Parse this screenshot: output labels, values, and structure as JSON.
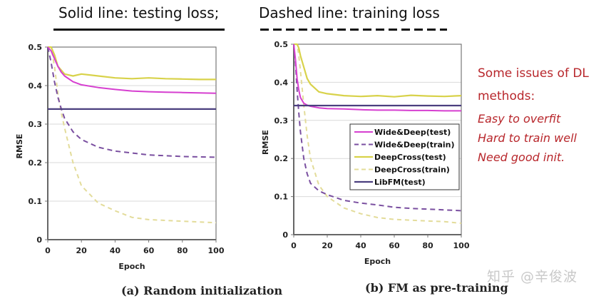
{
  "headings": {
    "solid": "Solid line: testing loss;",
    "dashed": "Dashed line: training loss"
  },
  "notes": {
    "title_line1": "Some issues of DL",
    "title_line2": "methods:",
    "items": [
      "Easy to overfit",
      "Hard to train well",
      "Need good init."
    ]
  },
  "watermark": "知乎 @辛俊波",
  "colors": {
    "wide_deep": "#d63fd0",
    "wide_deep_train": "#7a4fa0",
    "deepcross": "#d8d24a",
    "deepcross_train": "#e3dc9a",
    "libfm": "#4b3f7f",
    "note_text": "#b8272c"
  },
  "chart_data": [
    {
      "type": "line",
      "title": "(a) Random initialization",
      "xlabel": "Epoch",
      "ylabel": "RMSE",
      "xlim": [
        0,
        100
      ],
      "ylim": [
        0,
        0.5
      ],
      "xticks": [
        "0",
        "20",
        "40",
        "60",
        "80",
        "100"
      ],
      "yticks": [
        "0",
        "0.1",
        "0.2",
        "0.3",
        "0.4",
        "0.5"
      ],
      "grid": true,
      "legend": "none",
      "x": [
        0,
        2,
        4,
        6,
        8,
        10,
        15,
        20,
        30,
        40,
        50,
        60,
        70,
        80,
        90,
        100
      ],
      "series": [
        {
          "name": "Wide&Deep(test)",
          "style": "solid",
          "values": [
            0.5,
            0.49,
            0.47,
            0.45,
            0.435,
            0.425,
            0.41,
            0.402,
            0.395,
            0.39,
            0.386,
            0.384,
            0.383,
            0.382,
            0.381,
            0.38
          ]
        },
        {
          "name": "Wide&Deep(train)",
          "style": "dashed",
          "values": [
            0.5,
            0.46,
            0.41,
            0.37,
            0.34,
            0.315,
            0.28,
            0.26,
            0.24,
            0.23,
            0.225,
            0.22,
            0.218,
            0.216,
            0.215,
            0.214
          ]
        },
        {
          "name": "DeepCross(test)",
          "style": "solid",
          "values": [
            0.5,
            0.5,
            0.48,
            0.45,
            0.44,
            0.43,
            0.425,
            0.43,
            0.425,
            0.42,
            0.418,
            0.42,
            0.418,
            0.417,
            0.416,
            0.416
          ]
        },
        {
          "name": "DeepCross(train)",
          "style": "dashed",
          "values": [
            0.5,
            0.5,
            0.45,
            0.38,
            0.33,
            0.29,
            0.2,
            0.14,
            0.095,
            0.075,
            0.058,
            0.052,
            0.05,
            0.048,
            0.046,
            0.044
          ]
        },
        {
          "name": "LibFM(test)",
          "style": "solid",
          "values": [
            0.339,
            0.339,
            0.339,
            0.339,
            0.339,
            0.339,
            0.339,
            0.339,
            0.339,
            0.339,
            0.339,
            0.339,
            0.339,
            0.339,
            0.339,
            0.339
          ]
        }
      ]
    },
    {
      "type": "line",
      "title": "(b) FM as pre-training",
      "xlabel": "Epoch",
      "ylabel": "RMSE",
      "xlim": [
        0,
        100
      ],
      "ylim": [
        0,
        0.5
      ],
      "xticks": [
        "0",
        "20",
        "40",
        "60",
        "80",
        "100"
      ],
      "yticks": [
        "0",
        "0.1",
        "0.2",
        "0.3",
        "0.4",
        "0.5"
      ],
      "grid": true,
      "legend": "center-right",
      "x": [
        0,
        1,
        2,
        3,
        4,
        6,
        8,
        10,
        15,
        20,
        30,
        40,
        50,
        60,
        70,
        80,
        90,
        100
      ],
      "series": [
        {
          "name": "Wide&Deep(test)",
          "style": "solid",
          "values": [
            0.5,
            0.46,
            0.41,
            0.38,
            0.36,
            0.345,
            0.34,
            0.337,
            0.333,
            0.331,
            0.33,
            0.328,
            0.327,
            0.327,
            0.326,
            0.326,
            0.325,
            0.325
          ]
        },
        {
          "name": "Wide&Deep(train)",
          "style": "dashed",
          "values": [
            0.5,
            0.45,
            0.38,
            0.32,
            0.27,
            0.2,
            0.16,
            0.135,
            0.115,
            0.105,
            0.09,
            0.083,
            0.078,
            0.072,
            0.069,
            0.067,
            0.065,
            0.063
          ]
        },
        {
          "name": "DeepCross(test)",
          "style": "solid",
          "values": [
            0.5,
            0.5,
            0.5,
            0.49,
            0.47,
            0.44,
            0.41,
            0.395,
            0.375,
            0.37,
            0.365,
            0.363,
            0.365,
            0.362,
            0.366,
            0.364,
            0.363,
            0.365
          ]
        },
        {
          "name": "DeepCross(train)",
          "style": "dashed",
          "values": [
            0.5,
            0.5,
            0.5,
            0.47,
            0.43,
            0.34,
            0.26,
            0.2,
            0.13,
            0.1,
            0.07,
            0.055,
            0.045,
            0.04,
            0.038,
            0.036,
            0.034,
            0.03
          ]
        },
        {
          "name": "LibFM(test)",
          "style": "solid",
          "values": [
            0.339,
            0.339,
            0.339,
            0.339,
            0.339,
            0.339,
            0.339,
            0.339,
            0.339,
            0.339,
            0.339,
            0.339,
            0.339,
            0.339,
            0.339,
            0.339,
            0.339,
            0.339
          ]
        }
      ]
    }
  ]
}
